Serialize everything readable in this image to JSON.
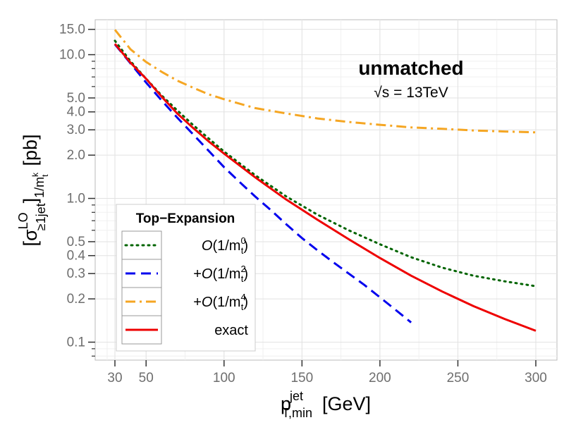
{
  "chart_data": {
    "type": "line",
    "title": "",
    "annotation": {
      "title": "unmatched",
      "subtitle": "√s = 13TeV"
    },
    "xlabel": {
      "base": "p",
      "sup": "jet",
      "sub": "T,min",
      "unit": "[GeV]"
    },
    "ylabel": {
      "sigma": "σ",
      "sup": "LO",
      "sub": "≥1jet",
      "outer_sub": "1/m",
      "outer_sub_sup": "k",
      "outer_sub_sub": "t",
      "unit": "[pb]"
    },
    "xlim": [
      30,
      300
    ],
    "ylim": [
      0.075,
      17.5
    ],
    "yscale": "log",
    "x_ticks": [
      30,
      50,
      100,
      150,
      200,
      250,
      300
    ],
    "x_tick_labels": [
      "30",
      "50",
      "100",
      "150",
      "200",
      "250",
      "300"
    ],
    "y_ticks": [
      0.1,
      0.2,
      0.3,
      0.4,
      0.5,
      1.0,
      2.0,
      3.0,
      4.0,
      5.0,
      10.0,
      15.0
    ],
    "y_tick_labels": [
      "0.1",
      "0.2",
      "0.3",
      "0.4",
      "0.5",
      "1.0",
      "2.0",
      "3.0",
      "4.0",
      "5.0",
      "10.0",
      "15.0"
    ],
    "grid": true,
    "legend": {
      "title": "Top−Expansion",
      "position": "bottom-left"
    },
    "series": [
      {
        "name": "O(1/m_t^0)",
        "prefix": "",
        "sup": "0",
        "color": "#006400",
        "dash": "dotted",
        "x": [
          30,
          40,
          50,
          60,
          70,
          80,
          90,
          100,
          120,
          140,
          160,
          180,
          200,
          220,
          240,
          260,
          280,
          300
        ],
        "y": [
          12.5,
          9.0,
          6.8,
          5.2,
          4.1,
          3.25,
          2.62,
          2.12,
          1.45,
          1.03,
          0.77,
          0.6,
          0.48,
          0.39,
          0.33,
          0.29,
          0.265,
          0.245
        ]
      },
      {
        "name": "+O(1/m_t^2)",
        "prefix": "+",
        "sup": "2",
        "color": "#0000ee",
        "dash": "dashed",
        "x": [
          30,
          40,
          50,
          60,
          70,
          80,
          90,
          100,
          110,
          120,
          130,
          140,
          150,
          160,
          170,
          180,
          190,
          200,
          210,
          220
        ],
        "y": [
          11.8,
          8.7,
          6.4,
          4.8,
          3.65,
          2.8,
          2.15,
          1.65,
          1.3,
          1.03,
          0.83,
          0.66,
          0.53,
          0.435,
          0.36,
          0.3,
          0.25,
          0.205,
          0.168,
          0.137
        ]
      },
      {
        "name": "+O(1/m_t^4)",
        "prefix": "+",
        "sup": "4",
        "color": "#f5a623",
        "dash": "dashdot",
        "x": [
          30,
          40,
          50,
          60,
          70,
          80,
          90,
          100,
          120,
          140,
          160,
          180,
          200,
          220,
          240,
          260,
          280,
          300
        ],
        "y": [
          14.9,
          10.9,
          8.9,
          7.6,
          6.6,
          5.9,
          5.3,
          4.9,
          4.25,
          3.9,
          3.6,
          3.4,
          3.25,
          3.12,
          3.05,
          2.97,
          2.92,
          2.88
        ]
      },
      {
        "name": "exact",
        "prefix": "",
        "sup": "",
        "color": "#ee0000",
        "dash": "solid",
        "x": [
          30,
          40,
          50,
          60,
          70,
          80,
          90,
          100,
          120,
          140,
          160,
          180,
          200,
          220,
          240,
          260,
          280,
          300
        ],
        "y": [
          11.9,
          8.8,
          6.8,
          5.1,
          3.9,
          3.1,
          2.5,
          2.05,
          1.4,
          0.98,
          0.71,
          0.52,
          0.385,
          0.29,
          0.225,
          0.178,
          0.145,
          0.12
        ]
      }
    ]
  }
}
